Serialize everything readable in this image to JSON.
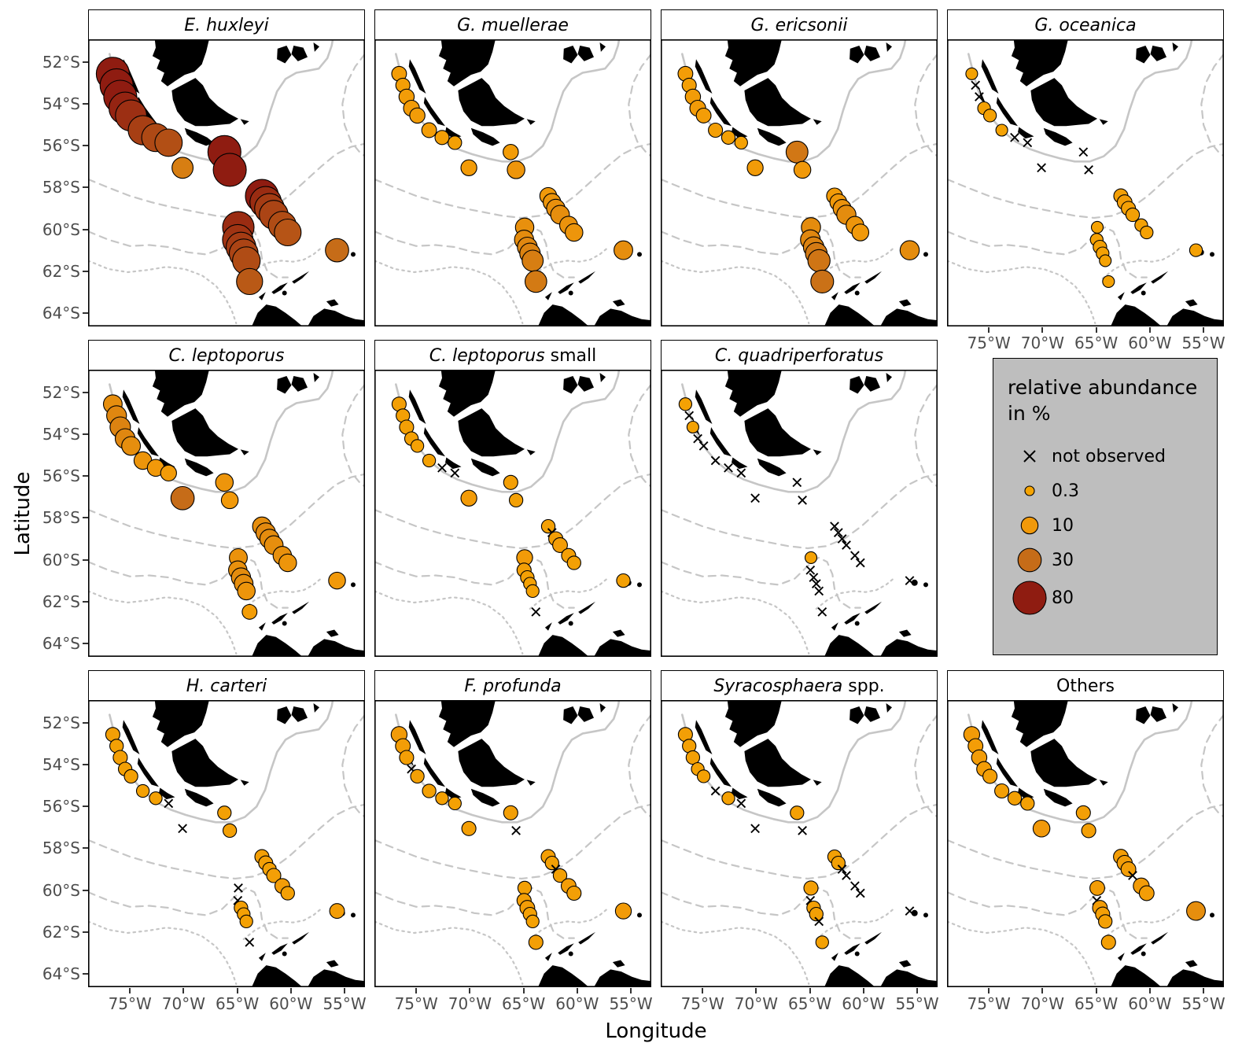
{
  "axes": {
    "x_title": "Longitude",
    "y_title": "Latitude",
    "x_ticks": [
      {
        "value": -75,
        "label": "75°W"
      },
      {
        "value": -70,
        "label": "70°W"
      },
      {
        "value": -65,
        "label": "65°W"
      },
      {
        "value": -60,
        "label": "60°W"
      },
      {
        "value": -55,
        "label": "55°W"
      }
    ],
    "y_ticks": [
      {
        "value": 52,
        "label": "52°S"
      },
      {
        "value": 54,
        "label": "54°S"
      },
      {
        "value": 56,
        "label": "56°S"
      },
      {
        "value": 58,
        "label": "58°S"
      },
      {
        "value": 60,
        "label": "60°S"
      },
      {
        "value": 62,
        "label": "62°S"
      },
      {
        "value": 64,
        "label": "64°S"
      }
    ]
  },
  "legend": {
    "title_line1": "relative abundance",
    "title_line2": "in %",
    "items": [
      {
        "type": "x",
        "label": "not observed"
      },
      {
        "type": "circle",
        "value": 0.3,
        "label": "0.3"
      },
      {
        "type": "circle",
        "value": 10,
        "label": "10"
      },
      {
        "type": "circle",
        "value": 30,
        "label": "30"
      },
      {
        "type": "circle",
        "value": 80,
        "label": "80"
      }
    ]
  },
  "chart_data": {
    "type": "scatter",
    "subtype": "faceted-bubble-map",
    "x_range": [
      -78.9,
      -53.1
    ],
    "y_range_lat_S": [
      50.9,
      64.65
    ],
    "grid": "off",
    "legend_position": "panel-row2-col4",
    "size_scale_values": [
      0.3,
      10,
      30,
      80
    ],
    "color_scale": {
      "stops": [
        [
          0,
          "#F5A402"
        ],
        [
          10,
          "#F1990A"
        ],
        [
          30,
          "#C66C18"
        ],
        [
          80,
          "#8F1C11"
        ]
      ]
    },
    "not_observed_code": "x",
    "stations": [
      {
        "lon": -76.6,
        "lat": 52.55
      },
      {
        "lon": -76.25,
        "lat": 53.1
      },
      {
        "lon": -75.9,
        "lat": 53.65
      },
      {
        "lon": -75.45,
        "lat": 54.2
      },
      {
        "lon": -74.9,
        "lat": 54.55
      },
      {
        "lon": -73.8,
        "lat": 55.25
      },
      {
        "lon": -72.6,
        "lat": 55.6
      },
      {
        "lon": -71.4,
        "lat": 55.85
      },
      {
        "lon": -70.1,
        "lat": 57.05
      },
      {
        "lon": -66.2,
        "lat": 56.3
      },
      {
        "lon": -65.7,
        "lat": 57.15
      },
      {
        "lon": -62.7,
        "lat": 58.4
      },
      {
        "lon": -62.35,
        "lat": 58.7
      },
      {
        "lon": -62.0,
        "lat": 59.0
      },
      {
        "lon": -61.6,
        "lat": 59.3
      },
      {
        "lon": -60.8,
        "lat": 59.8
      },
      {
        "lon": -60.3,
        "lat": 60.15
      },
      {
        "lon": -64.9,
        "lat": 59.9
      },
      {
        "lon": -64.95,
        "lat": 60.5
      },
      {
        "lon": -64.65,
        "lat": 60.85
      },
      {
        "lon": -64.4,
        "lat": 61.15
      },
      {
        "lon": -64.15,
        "lat": 61.5
      },
      {
        "lon": -63.85,
        "lat": 62.5
      },
      {
        "lon": -55.7,
        "lat": 61.0
      }
    ],
    "facets": [
      {
        "id": "e-huxleyi",
        "name_italic": "E. huxleyi",
        "name_plain": "",
        "values": [
          85,
          82,
          80,
          75,
          68,
          58,
          52,
          48,
          22,
          82,
          80,
          80,
          70,
          60,
          55,
          50,
          45,
          70,
          65,
          60,
          55,
          50,
          42,
          30
        ]
      },
      {
        "id": "g-muellerae",
        "name_italic": "G. muellerae",
        "name_plain": "",
        "values": [
          6,
          5,
          7,
          8,
          7,
          6,
          5,
          4,
          8,
          7,
          12,
          10,
          12,
          14,
          15,
          13,
          12,
          14,
          16,
          18,
          20,
          22,
          24,
          15
        ]
      },
      {
        "id": "g-ericsonii",
        "name_italic": "G. ericsonii",
        "name_plain": "",
        "values": [
          6,
          5,
          7,
          8,
          6,
          5,
          4,
          3,
          8,
          25,
          10,
          8,
          10,
          13,
          16,
          12,
          10,
          16,
          18,
          20,
          24,
          26,
          28,
          16
        ]
      },
      {
        "id": "g-oceanica",
        "name_italic": "G. oceanica",
        "name_plain": "",
        "values": [
          2,
          "x",
          "x",
          3,
          3,
          2,
          "x",
          "x",
          "x",
          "x",
          "x",
          5,
          6,
          5,
          4,
          3,
          3,
          2,
          3,
          4,
          3,
          2,
          2,
          3
        ]
      },
      {
        "id": "c-leptoporus",
        "name_italic": "C. leptoporus",
        "name_plain": "",
        "values": [
          15,
          18,
          20,
          18,
          15,
          12,
          10,
          8,
          30,
          12,
          10,
          15,
          17,
          16,
          15,
          14,
          12,
          13,
          14,
          16,
          15,
          12,
          6,
          10
        ]
      },
      {
        "id": "c-leptoporus-small",
        "name_italic": "C. leptoporus",
        "name_plain": " small",
        "values": [
          5,
          4,
          5,
          4,
          3,
          3,
          "x",
          "x",
          8,
          5,
          4,
          4,
          "x",
          5,
          6,
          5,
          4,
          8,
          5,
          4,
          3,
          3,
          "x",
          4
        ]
      },
      {
        "id": "c-quadriperforatus",
        "name_italic": "C. quadriperforatus",
        "name_plain": "",
        "values": [
          3,
          "x",
          2,
          "x",
          "x",
          "x",
          "x",
          "x",
          "x",
          "x",
          "x",
          "x",
          "x",
          "x",
          "x",
          "x",
          "x",
          2,
          "x",
          "x",
          "x",
          "x",
          "x",
          "x"
        ]
      },
      {
        "id": "h-carteri",
        "name_italic": "H. carteri",
        "name_plain": "",
        "values": [
          5,
          4,
          5,
          4,
          4,
          3,
          3,
          "x",
          "x",
          4,
          4,
          5,
          5,
          4,
          5,
          6,
          4,
          "x",
          "x",
          4,
          3,
          3,
          "x",
          6
        ]
      },
      {
        "id": "f-profunda",
        "name_italic": "F. profunda",
        "name_plain": "",
        "values": [
          8,
          6,
          5,
          "x",
          4,
          4,
          3,
          3,
          5,
          5,
          "x",
          5,
          4,
          "x",
          4,
          6,
          5,
          4,
          5,
          6,
          4,
          3,
          5,
          8
        ]
      },
      {
        "id": "syracosphaera-spp",
        "name_italic": "Syracosphaera",
        "name_plain": " spp.",
        "values": [
          5,
          4,
          4,
          3,
          3,
          "x",
          3,
          "x",
          "x",
          4,
          "x",
          4,
          4,
          "x",
          "x",
          "x",
          "x",
          5,
          "x",
          4,
          4,
          "x",
          3,
          "x"
        ]
      },
      {
        "id": "others",
        "name_italic": "",
        "name_plain": "Others",
        "values": [
          8,
          6,
          7,
          6,
          5,
          5,
          4,
          4,
          10,
          5,
          5,
          6,
          7,
          6,
          "x",
          8,
          6,
          6,
          "x",
          6,
          5,
          4,
          5,
          15
        ]
      }
    ]
  }
}
